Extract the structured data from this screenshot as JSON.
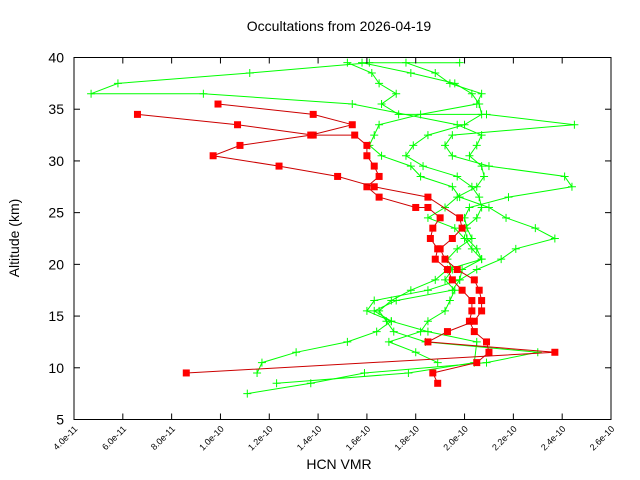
{
  "chart_data": {
    "type": "line",
    "title": "Occultations from 2026-04-19",
    "xlabel": "HCN VMR",
    "ylabel": "Altitude (km)",
    "xlim": [
      4e-11,
      2.6e-10
    ],
    "ylim": [
      5,
      40
    ],
    "xticks": [
      4e-11,
      6e-11,
      8e-11,
      1e-10,
      1.2e-10,
      1.4e-10,
      1.6e-10,
      1.8e-10,
      2e-10,
      2.2e-10,
      2.4e-10,
      2.6e-10
    ],
    "xtick_labels": [
      "4.0e-11",
      "6.0e-11",
      "8.0e-11",
      "1.0e-10",
      "1.2e-10",
      "1.4e-10",
      "1.6e-10",
      "1.8e-10",
      "2.0e-10",
      "2.2e-10",
      "2.4e-10",
      "2.6e-10"
    ],
    "yticks": [
      5,
      10,
      15,
      20,
      25,
      30,
      35,
      40
    ],
    "ytick_labels": [
      "5",
      "10",
      "15",
      "20",
      "25",
      "30",
      "35",
      "40"
    ],
    "grid": false,
    "legend": "none",
    "series": [
      {
        "color": "#ff0000",
        "marker": "square",
        "points": [
          [
            1.89e-10,
            8.5
          ],
          [
            1.87e-10,
            9.5
          ],
          [
            2.05e-10,
            10.5
          ],
          [
            2.1e-10,
            11.5
          ],
          [
            2.09e-10,
            12.5
          ],
          [
            2.04e-10,
            13.5
          ],
          [
            2.02e-10,
            14.5
          ],
          [
            2.03e-10,
            15.5
          ],
          [
            2.03e-10,
            16.5
          ],
          [
            1.99e-10,
            17.5
          ],
          [
            1.95e-10,
            18.5
          ],
          [
            1.93e-10,
            19.5
          ],
          [
            1.88e-10,
            20.5
          ],
          [
            1.89e-10,
            21.5
          ],
          [
            1.86e-10,
            22.5
          ],
          [
            1.87e-10,
            23.5
          ],
          [
            1.9e-10,
            24.5
          ],
          [
            1.85e-10,
            25.5
          ],
          [
            1.8e-10,
            25.5
          ],
          [
            1.65e-10,
            26.5
          ],
          [
            1.6e-10,
            27.5
          ],
          [
            1.65e-10,
            28.5
          ],
          [
            1.63e-10,
            29.5
          ],
          [
            1.6e-10,
            30.5
          ],
          [
            1.6e-10,
            31.5
          ],
          [
            1.55e-10,
            32.5
          ],
          [
            1.38e-10,
            32.5
          ],
          [
            1.07e-10,
            33.5
          ],
          [
            6.6e-11,
            34.5
          ]
        ]
      },
      {
        "color": "#ff0000",
        "marker": "square",
        "points": [
          [
            8.6e-11,
            9.5
          ],
          [
            2.37e-10,
            11.5
          ],
          [
            1.85e-10,
            12.5
          ],
          [
            1.93e-10,
            13.5
          ],
          [
            2.04e-10,
            14.5
          ],
          [
            2.07e-10,
            15.5
          ],
          [
            2.07e-10,
            16.5
          ],
          [
            2.06e-10,
            17.5
          ],
          [
            2.04e-10,
            18.5
          ],
          [
            1.97e-10,
            19.5
          ],
          [
            1.92e-10,
            20.5
          ],
          [
            1.9e-10,
            21.5
          ],
          [
            1.95e-10,
            22.5
          ],
          [
            1.99e-10,
            23.5
          ],
          [
            1.98e-10,
            24.5
          ],
          [
            1.85e-10,
            26.5
          ],
          [
            1.63e-10,
            27.5
          ],
          [
            1.48e-10,
            28.5
          ],
          [
            1.24e-10,
            29.5
          ],
          [
            9.7e-11,
            30.5
          ],
          [
            1.08e-10,
            31.5
          ],
          [
            1.37e-10,
            32.5
          ],
          [
            1.54e-10,
            33.5
          ],
          [
            1.38e-10,
            34.5
          ],
          [
            9.9e-11,
            35.5
          ]
        ]
      },
      {
        "color": "#00ff00",
        "marker": "plus",
        "points": [
          [
            1.11e-10,
            7.5
          ],
          [
            1.37e-10,
            8.5
          ],
          [
            1.59e-10,
            9.5
          ],
          [
            2.09e-10,
            10.5
          ],
          [
            2.3e-10,
            11.5
          ],
          [
            1.84e-10,
            12.5
          ],
          [
            1.71e-10,
            13.5
          ],
          [
            1.68e-10,
            14.5
          ],
          [
            1.65e-10,
            15.5
          ],
          [
            1.7e-10,
            16.5
          ],
          [
            1.78e-10,
            17.5
          ],
          [
            1.88e-10,
            18.5
          ],
          [
            1.93e-10,
            19.5
          ],
          [
            2.07e-10,
            20.5
          ],
          [
            2.05e-10,
            21.5
          ],
          [
            2.01e-10,
            22.5
          ],
          [
            2e-10,
            23.5
          ],
          [
            2.05e-10,
            24.5
          ],
          [
            2.07e-10,
            25.5
          ],
          [
            2.06e-10,
            26.5
          ],
          [
            2.03e-10,
            27.5
          ],
          [
            1.97e-10,
            28.5
          ],
          [
            1.83e-10,
            29.5
          ],
          [
            1.76e-10,
            30.5
          ],
          [
            1.79e-10,
            31.5
          ],
          [
            1.85e-10,
            32.5
          ],
          [
            2e-10,
            33.5
          ],
          [
            2.07e-10,
            34.5
          ],
          [
            2.06e-10,
            35.5
          ],
          [
            2.03e-10,
            36.5
          ],
          [
            1.96e-10,
            37.5
          ],
          [
            1.78e-10,
            38.5
          ],
          [
            1.58e-10,
            39.5
          ]
        ]
      },
      {
        "color": "#00ff00",
        "marker": "plus",
        "points": [
          [
            1.15e-10,
            9.5
          ],
          [
            1.17e-10,
            10.5
          ],
          [
            1.31e-10,
            11.5
          ],
          [
            1.52e-10,
            12.5
          ],
          [
            1.64e-10,
            13.5
          ],
          [
            1.7e-10,
            14.5
          ],
          [
            1.6e-10,
            15.5
          ],
          [
            1.63e-10,
            16.5
          ],
          [
            1.85e-10,
            17.5
          ],
          [
            1.98e-10,
            18.5
          ],
          [
            2.05e-10,
            19.5
          ],
          [
            2.15e-10,
            20.5
          ],
          [
            2.21e-10,
            21.5
          ],
          [
            2.37e-10,
            22.5
          ],
          [
            2.29e-10,
            23.5
          ],
          [
            2.17e-10,
            24.5
          ],
          [
            2.1e-10,
            25.5
          ],
          [
            1.98e-10,
            26.5
          ],
          [
            1.95e-10,
            27.5
          ],
          [
            1.82e-10,
            28.5
          ],
          [
            1.78e-10,
            29.5
          ],
          [
            1.66e-10,
            30.5
          ],
          [
            1.61e-10,
            31.5
          ],
          [
            1.63e-10,
            32.5
          ],
          [
            1.65e-10,
            33.5
          ],
          [
            1.82e-10,
            34.5
          ],
          [
            2.05e-10,
            35.5
          ],
          [
            2.07e-10,
            36.5
          ],
          [
            1.94e-10,
            37.5
          ],
          [
            1.88e-10,
            38.5
          ],
          [
            1.76e-10,
            39.5
          ]
        ]
      },
      {
        "color": "#00ff00",
        "marker": "plus",
        "points": [
          [
            1.89e-10,
            10.5
          ],
          [
            1.8e-10,
            11.5
          ],
          [
            1.69e-10,
            12.5
          ],
          [
            1.82e-10,
            13.5
          ],
          [
            1.85e-10,
            14.5
          ],
          [
            1.92e-10,
            15.5
          ],
          [
            1.94e-10,
            16.5
          ],
          [
            1.96e-10,
            17.5
          ],
          [
            1.92e-10,
            18.5
          ],
          [
            1.95e-10,
            19.5
          ],
          [
            1.93e-10,
            20.5
          ],
          [
            1.97e-10,
            21.5
          ],
          [
            2.03e-10,
            22.5
          ],
          [
            2.01e-10,
            23.5
          ],
          [
            2e-10,
            24.5
          ],
          [
            2.02e-10,
            25.5
          ],
          [
            2.18e-10,
            26.5
          ],
          [
            2.44e-10,
            27.5
          ],
          [
            2.41e-10,
            28.5
          ],
          [
            2.1e-10,
            29.5
          ],
          [
            1.95e-10,
            30.5
          ],
          [
            1.92e-10,
            31.5
          ],
          [
            1.95e-10,
            32.5
          ],
          [
            2.45e-10,
            33.5
          ],
          [
            2.09e-10,
            34.5
          ],
          [
            1.73e-10,
            34.5
          ],
          [
            1.66e-10,
            35.5
          ],
          [
            1.72e-10,
            36.5
          ],
          [
            1.65e-10,
            37.5
          ],
          [
            1.62e-10,
            38.5
          ],
          [
            1.52e-10,
            39.5
          ]
        ]
      },
      {
        "color": "#00ff00",
        "marker": "plus",
        "points": [
          [
            1.23e-10,
            8.5
          ],
          [
            1.77e-10,
            9.5
          ],
          [
            2.04e-10,
            10.5
          ],
          [
            2.05e-10,
            12.5
          ],
          [
            1.85e-10,
            13.5
          ],
          [
            1.7e-10,
            14.5
          ],
          [
            1.63e-10,
            15.5
          ],
          [
            1.72e-10,
            16.5
          ],
          [
            1.95e-10,
            17.5
          ],
          [
            1.98e-10,
            18.5
          ],
          [
            1.99e-10,
            19.5
          ],
          [
            2.07e-10,
            20.5
          ],
          [
            2.03e-10,
            21.5
          ],
          [
            2e-10,
            22.5
          ],
          [
            1.96e-10,
            23.5
          ],
          [
            1.85e-10,
            24.5
          ],
          [
            1.92e-10,
            25.5
          ],
          [
            1.97e-10,
            26.5
          ],
          [
            2.05e-10,
            27.5
          ],
          [
            2.08e-10,
            28.5
          ],
          [
            2.07e-10,
            29.5
          ],
          [
            2.02e-10,
            30.5
          ],
          [
            2.05e-10,
            31.5
          ],
          [
            2.07e-10,
            32.5
          ],
          [
            1.97e-10,
            33.5
          ],
          [
            1.54e-10,
            35.5
          ],
          [
            9.3e-11,
            36.5
          ],
          [
            4.7e-11,
            36.5
          ],
          [
            5.8e-11,
            37.5
          ],
          [
            1.12e-10,
            38.5
          ],
          [
            1.61e-10,
            39.5
          ],
          [
            1.98e-10,
            39.5
          ]
        ]
      }
    ]
  }
}
